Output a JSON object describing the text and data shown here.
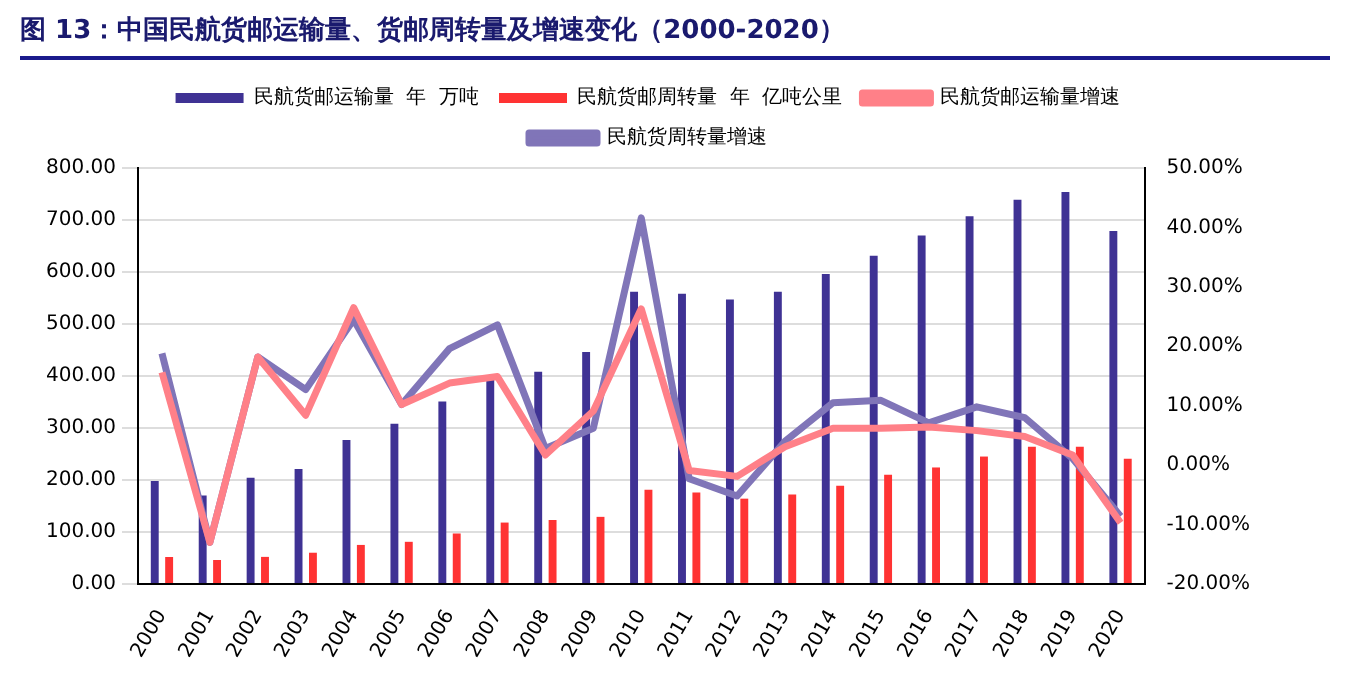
{
  "chart_data": {
    "type": "bar",
    "title": "图 13：中国民航货邮运输量、货邮周转量及增速变化（2000-2020）",
    "categories": [
      "2000",
      "2001",
      "2002",
      "2003",
      "2004",
      "2005",
      "2006",
      "2007",
      "2008",
      "2009",
      "2010",
      "2011",
      "2012",
      "2013",
      "2014",
      "2015",
      "2016",
      "2017",
      "2018",
      "2019",
      "2020"
    ],
    "series": [
      {
        "name": "民航货邮运输量  年  万吨",
        "color": "#3f3294",
        "values": [
          198,
          170,
          204,
          221,
          277,
          308,
          351,
          394,
          408,
          446,
          562,
          558,
          547,
          562,
          596,
          631,
          670,
          707,
          739,
          754,
          679
        ]
      },
      {
        "name": "民航货邮周转量  年  亿吨公里",
        "color": "#ff3333",
        "values": [
          52,
          46,
          52,
          60,
          75,
          81,
          97,
          118,
          123,
          129,
          181,
          176,
          164,
          172,
          189,
          210,
          224,
          245,
          264,
          264,
          241
        ]
      },
      {
        "name": "民航货邮运输量增速",
        "type": "line",
        "axis": "y2",
        "color": "#ff8088",
        "values": [
          15.6,
          -13,
          18.2,
          8.4,
          26.5,
          10.2,
          13.8,
          14.9,
          1.7,
          9.1,
          26.3,
          -0.9,
          -1.9,
          3.1,
          6.2,
          6.2,
          6.4,
          5.8,
          4.8,
          1.7,
          -9.7
        ]
      },
      {
        "name": "民航货周转量增速",
        "type": "line",
        "axis": "y2",
        "color": "#8075b8",
        "values": [
          18.8,
          -13,
          18.2,
          12.7,
          24.5,
          10.2,
          19.6,
          23.6,
          2.8,
          6.2,
          41.6,
          -2.3,
          -5.2,
          4.0,
          10.5,
          10.9,
          7.1,
          9.8,
          8.0,
          1.1,
          -8.6
        ]
      }
    ],
    "ylim": [
      0,
      800
    ],
    "yticks": [
      {
        "value": 0,
        "label": "0.00"
      },
      {
        "value": 100,
        "label": "100.00"
      },
      {
        "value": 200,
        "label": "200.00"
      },
      {
        "value": 300,
        "label": "300.00"
      },
      {
        "value": 400,
        "label": "400.00"
      },
      {
        "value": 500,
        "label": "500.00"
      },
      {
        "value": 600,
        "label": "600.00"
      },
      {
        "value": 700,
        "label": "700.00"
      },
      {
        "value": 800,
        "label": "800.00"
      }
    ],
    "y2lim": [
      -20,
      50
    ],
    "y2ticks": [
      {
        "value": -20,
        "label": "-20.00%"
      },
      {
        "value": -10,
        "label": "-10.00%"
      },
      {
        "value": 0,
        "label": "0.00%"
      },
      {
        "value": 10,
        "label": "10.00%"
      },
      {
        "value": 20,
        "label": "20.00%"
      },
      {
        "value": 30,
        "label": "30.00%"
      },
      {
        "value": 40,
        "label": "40.00%"
      },
      {
        "value": 50,
        "label": "50.00%"
      }
    ],
    "grid": "y",
    "legend": "top",
    "marker": "none",
    "line_style": "solid"
  }
}
